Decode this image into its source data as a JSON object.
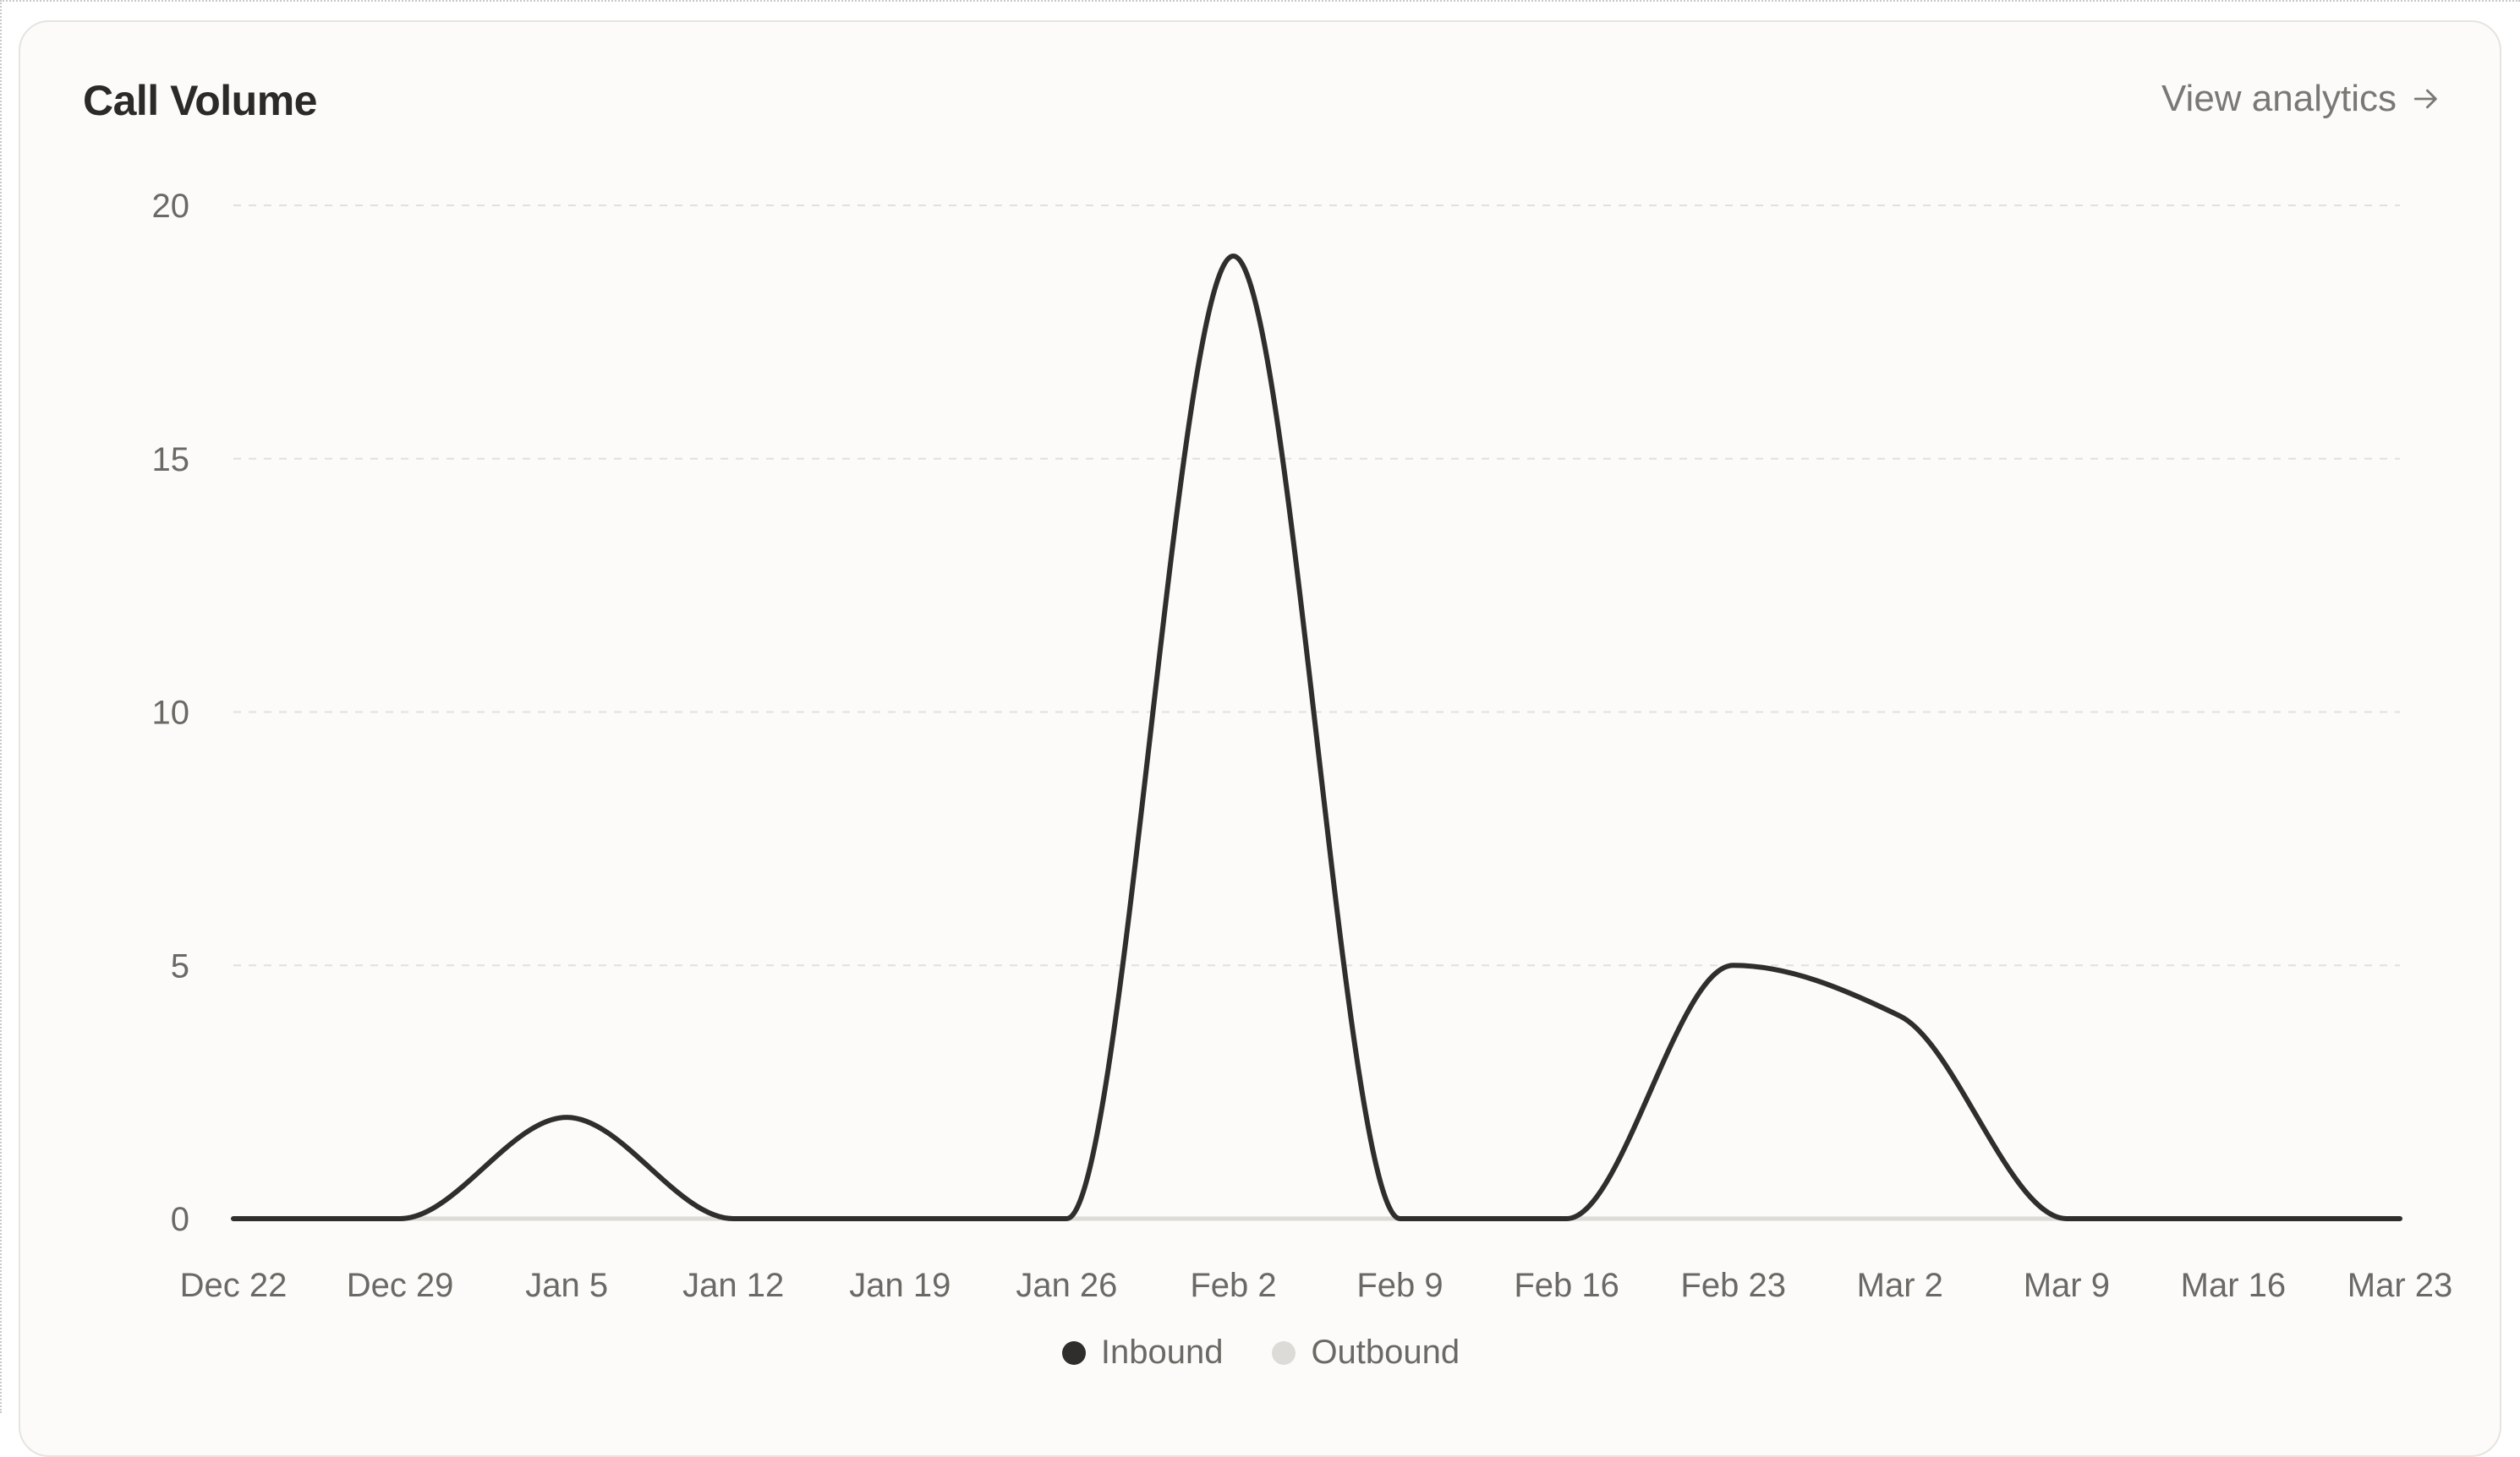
{
  "card": {
    "title": "Call Volume",
    "link_label": "View analytics",
    "link_icon": "arrow-right-icon"
  },
  "colors": {
    "inbound": "#2f2e2c",
    "outbound": "#dcdbd8",
    "grid": "#e2e0dc",
    "baseline": "#d9d7d3",
    "card_bg": "#fcfbf9"
  },
  "chart_data": {
    "type": "line",
    "title": "Call Volume",
    "xlabel": "",
    "ylabel": "",
    "x": [
      "Dec 22",
      "Dec 29",
      "Jan 5",
      "Jan 12",
      "Jan 19",
      "Jan 26",
      "Feb 2",
      "Feb 9",
      "Feb 16",
      "Feb 23",
      "Mar 2",
      "Mar 9",
      "Mar 16",
      "Mar 23"
    ],
    "y_ticks": [
      0,
      5,
      10,
      15,
      20
    ],
    "ylim": [
      0,
      20
    ],
    "grid": true,
    "curve": "smooth",
    "legend_position": "bottom-center",
    "series": [
      {
        "name": "Inbound",
        "values": [
          0,
          0,
          2,
          0,
          0,
          0,
          19,
          0,
          0,
          5,
          4,
          0,
          0,
          0
        ]
      },
      {
        "name": "Outbound",
        "values": [
          0,
          0,
          0,
          0,
          0,
          0,
          0,
          0,
          0,
          0,
          0,
          0,
          0,
          0
        ]
      }
    ]
  }
}
